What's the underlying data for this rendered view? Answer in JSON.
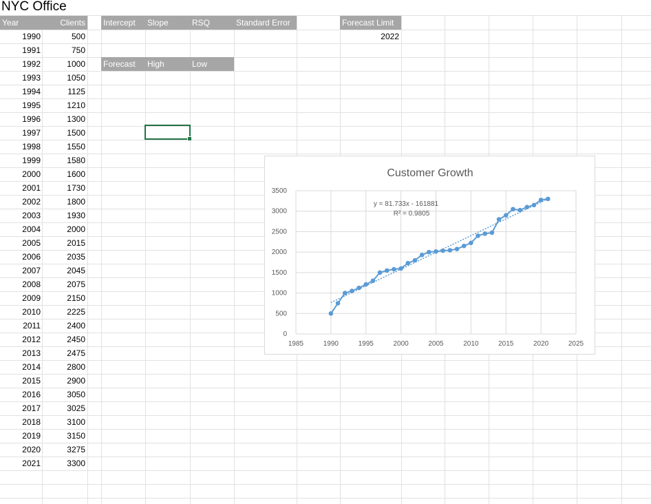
{
  "sheet": {
    "title": "NYC Office",
    "columns": {
      "year": "Year",
      "clients": "Clients"
    },
    "rows": [
      {
        "year": "1990",
        "clients": "500"
      },
      {
        "year": "1991",
        "clients": "750"
      },
      {
        "year": "1992",
        "clients": "1000"
      },
      {
        "year": "1993",
        "clients": "1050"
      },
      {
        "year": "1994",
        "clients": "1125"
      },
      {
        "year": "1995",
        "clients": "1210"
      },
      {
        "year": "1996",
        "clients": "1300"
      },
      {
        "year": "1997",
        "clients": "1500"
      },
      {
        "year": "1998",
        "clients": "1550"
      },
      {
        "year": "1999",
        "clients": "1580"
      },
      {
        "year": "2000",
        "clients": "1600"
      },
      {
        "year": "2001",
        "clients": "1730"
      },
      {
        "year": "2002",
        "clients": "1800"
      },
      {
        "year": "2003",
        "clients": "1930"
      },
      {
        "year": "2004",
        "clients": "2000"
      },
      {
        "year": "2005",
        "clients": "2015"
      },
      {
        "year": "2006",
        "clients": "2035"
      },
      {
        "year": "2007",
        "clients": "2045"
      },
      {
        "year": "2008",
        "clients": "2075"
      },
      {
        "year": "2009",
        "clients": "2150"
      },
      {
        "year": "2010",
        "clients": "2225"
      },
      {
        "year": "2011",
        "clients": "2400"
      },
      {
        "year": "2012",
        "clients": "2450"
      },
      {
        "year": "2013",
        "clients": "2475"
      },
      {
        "year": "2014",
        "clients": "2800"
      },
      {
        "year": "2015",
        "clients": "2900"
      },
      {
        "year": "2016",
        "clients": "3050"
      },
      {
        "year": "2017",
        "clients": "3025"
      },
      {
        "year": "2018",
        "clients": "3100"
      },
      {
        "year": "2019",
        "clients": "3150"
      },
      {
        "year": "2020",
        "clients": "3275"
      },
      {
        "year": "2021",
        "clients": "3300"
      }
    ],
    "stats_headers": {
      "intercept": "Intercept",
      "slope": "Slope",
      "rsq": "RSQ",
      "standard_error": "Standard Error",
      "forecast_limit": "Forecast Limit"
    },
    "forecast_limit_value": "2022",
    "forecast_headers": {
      "forecast": "Forecast",
      "high": "High",
      "low": "Low"
    }
  },
  "chart_data": {
    "type": "scatter",
    "title": "Customer Growth",
    "xlabel": "",
    "ylabel": "",
    "xlim": [
      1985,
      2025
    ],
    "ylim": [
      0,
      3500
    ],
    "x_ticks": [
      "1985",
      "1990",
      "1995",
      "2000",
      "2005",
      "2010",
      "2015",
      "2020",
      "2025"
    ],
    "y_ticks": [
      "0",
      "500",
      "1000",
      "1500",
      "2000",
      "2500",
      "3000",
      "3500"
    ],
    "grid": true,
    "legend": "none",
    "series_color": "#5b9bd5",
    "series": [
      {
        "x": [
          1990,
          1991,
          1992,
          1993,
          1994,
          1995,
          1996,
          1997,
          1998,
          1999,
          2000,
          2001,
          2002,
          2003,
          2004,
          2005,
          2006,
          2007,
          2008,
          2009,
          2010,
          2011,
          2012,
          2013,
          2014,
          2015,
          2016,
          2017,
          2018,
          2019,
          2020,
          2021
        ],
        "values": [
          500,
          750,
          1000,
          1050,
          1125,
          1210,
          1300,
          1500,
          1550,
          1580,
          1600,
          1730,
          1800,
          1930,
          2000,
          2015,
          2035,
          2045,
          2075,
          2150,
          2225,
          2400,
          2450,
          2475,
          2800,
          2900,
          3050,
          3025,
          3100,
          3150,
          3275,
          3300
        ]
      }
    ],
    "trendline": {
      "type": "linear",
      "slope": 81.733,
      "intercept": -161881,
      "equation": "y = 81.733x - 161881",
      "r_squared": "R² = 0.9805"
    }
  }
}
